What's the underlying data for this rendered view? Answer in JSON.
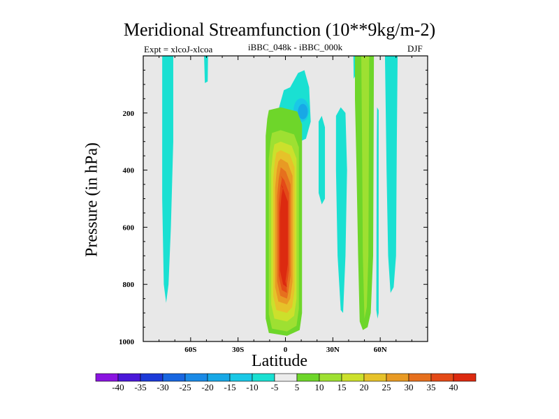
{
  "chart_data": {
    "type": "contour",
    "title": "Meridional Streamfunction (10**9kg/m-2)",
    "subtitle_left": "Expt = xlcoJ-xlcoa",
    "subtitle_center": "iBBC_048k - iBBC_000k",
    "subtitle_right": "DJF",
    "xlabel": "Latitude",
    "ylabel": "Pressure (in hPa)",
    "xlim": [
      -90,
      90
    ],
    "ylim": [
      1000,
      0
    ],
    "x_ticks": [
      {
        "value": -60,
        "label": "60S"
      },
      {
        "value": -30,
        "label": "30S"
      },
      {
        "value": 0,
        "label": "0"
      },
      {
        "value": 30,
        "label": "30N"
      },
      {
        "value": 60,
        "label": "60N"
      }
    ],
    "y_ticks": [
      {
        "value": 200,
        "label": "200"
      },
      {
        "value": 400,
        "label": "400"
      },
      {
        "value": 600,
        "label": "600"
      },
      {
        "value": 800,
        "label": "800"
      },
      {
        "value": 1000,
        "label": "1000"
      }
    ],
    "background_color": "#e8e8e8",
    "colorbar": {
      "labels": [
        "-40",
        "-35",
        "-30",
        "-25",
        "-20",
        "-15",
        "-10",
        "-5",
        "5",
        "10",
        "15",
        "20",
        "25",
        "30",
        "35",
        "40"
      ],
      "colors": [
        "#8a14e0",
        "#4a18d8",
        "#1c3ad8",
        "#1866e0",
        "#1a8ae6",
        "#18a8e6",
        "#1ac8e6",
        "#1ae0d2",
        "#ececec",
        "#6ed62a",
        "#9ee032",
        "#cce02c",
        "#e6c22a",
        "#e89a24",
        "#e6701e",
        "#e44a18",
        "#dc2a10"
      ]
    },
    "features": [
      {
        "name": "main-positive-cell",
        "lat_range": [
          -12,
          11
        ],
        "p_range": [
          180,
          980
        ],
        "peak": 40,
        "peak_lat": 0,
        "peak_p": 650
      },
      {
        "name": "upper-negative-cell",
        "lat_range": [
          -4,
          16
        ],
        "p_range": [
          40,
          320
        ],
        "min": -20,
        "center_lat": 8,
        "center_p": 190
      },
      {
        "name": "sh-polar-band",
        "lat_range": [
          -78,
          -71
        ],
        "p_range": [
          0,
          860
        ],
        "level": -5
      },
      {
        "name": "sh-upper-blob",
        "lat_range": [
          -51,
          -49
        ],
        "p_range": [
          0,
          90
        ],
        "level": -5
      },
      {
        "name": "nh-subtropical-band",
        "lat_range": [
          21,
          27
        ],
        "p_range": [
          200,
          520
        ],
        "level": -5
      },
      {
        "name": "nh-band-30n",
        "lat_range": [
          32,
          39
        ],
        "p_range": [
          180,
          900
        ],
        "level": -5
      },
      {
        "name": "nh-positive-band",
        "lat_range": [
          44,
          56
        ],
        "p_range": [
          0,
          960
        ],
        "level": 10
      },
      {
        "name": "nh-high-band",
        "lat_range": [
          64,
          71
        ],
        "p_range": [
          0,
          820
        ],
        "level": -5
      }
    ]
  }
}
